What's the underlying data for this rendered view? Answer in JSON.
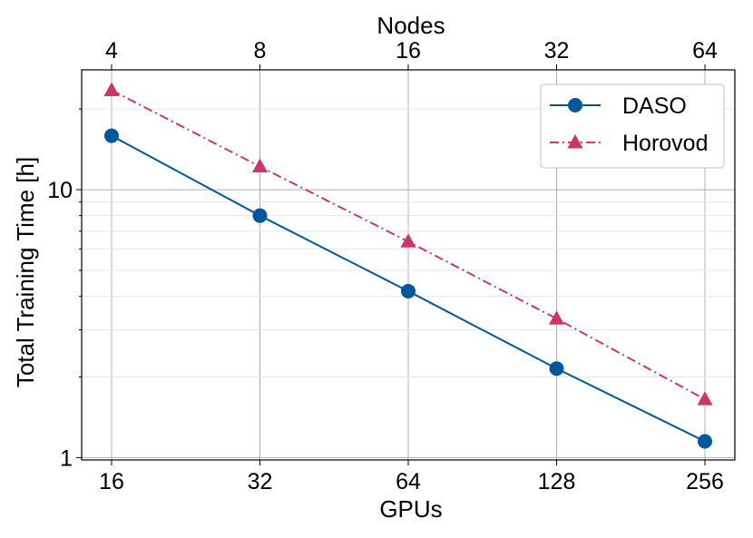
{
  "chart_data": {
    "type": "line",
    "xlabel": "GPUs",
    "x2label": "Nodes",
    "ylabel": "Total Training Time [h]",
    "x": [
      16,
      32,
      64,
      128,
      256
    ],
    "x_tick_labels": [
      "16",
      "32",
      "64",
      "128",
      "256"
    ],
    "x2_tick_labels": [
      "4",
      "8",
      "16",
      "32",
      "64"
    ],
    "x_scale": "log2",
    "y_scale": "log10",
    "ylim": [
      0.98,
      28
    ],
    "y_tick_labels": [
      "1",
      "10"
    ],
    "grid": true,
    "legend_position": "top-right",
    "series": [
      {
        "name": "DASO",
        "values": [
          15.9,
          8.0,
          4.18,
          2.15,
          1.15
        ],
        "color": "#00589c",
        "marker": "circle",
        "linestyle": "solid"
      },
      {
        "name": "Horovod",
        "values": [
          23.5,
          12.2,
          6.4,
          3.3,
          1.65
        ],
        "color": "#d0356a",
        "marker": "triangle-up",
        "linestyle": "dashdot"
      }
    ]
  }
}
